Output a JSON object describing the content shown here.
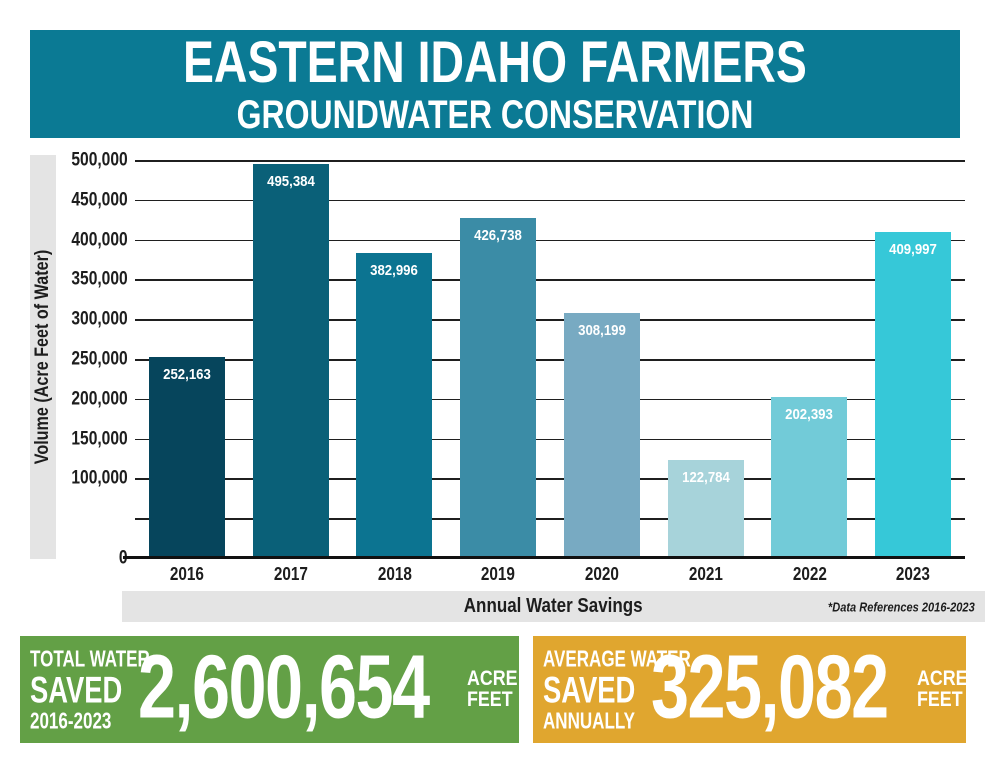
{
  "header": {
    "title": "EASTERN IDAHO FARMERS",
    "subtitle": "GROUNDWATER CONSERVATION",
    "bg": "#0b7a94"
  },
  "chart_data": {
    "type": "bar",
    "title": "",
    "categories": [
      "2016",
      "2017",
      "2018",
      "2019",
      "2020",
      "2021",
      "2022",
      "2023"
    ],
    "values": [
      252163,
      495384,
      382996,
      426738,
      308199,
      122784,
      202393,
      409997
    ],
    "value_labels": [
      "252,163",
      "495,384",
      "382,996",
      "426,738",
      "308,199",
      "122,784",
      "202,393",
      "409,997"
    ],
    "bar_colors": [
      "#06455c",
      "#0a6078",
      "#0c7491",
      "#3b8ca6",
      "#78aac2",
      "#a7d3da",
      "#72cbd8",
      "#36c8d8"
    ],
    "xlabel": "Annual Water Savings",
    "ylabel": "Volume (Acre Feet of Water)",
    "footnote": "*Data References 2016-2023",
    "ylim": [
      0,
      500000
    ],
    "gridline_step": 50000,
    "grid": true,
    "legend": false,
    "ytick_labels": [
      {
        "value": 500000,
        "label": "500,000"
      },
      {
        "value": 450000,
        "label": "450,000"
      },
      {
        "value": 400000,
        "label": "400,000"
      },
      {
        "value": 350000,
        "label": "350,000"
      },
      {
        "value": 300000,
        "label": "300,000"
      },
      {
        "value": 250000,
        "label": "250,000"
      },
      {
        "value": 200000,
        "label": "200,000"
      },
      {
        "value": 150000,
        "label": "150,000"
      },
      {
        "value": 100000,
        "label": "100,000"
      },
      {
        "value": 0,
        "label": "0"
      }
    ]
  },
  "stats": {
    "total": {
      "label_line1": "TOTAL WATER",
      "label_line2": "SAVED",
      "label_line3": "2016-2023",
      "value": "2,600,654",
      "unit_line1": "ACRE",
      "unit_line2": "FEET",
      "bg": "#63a046"
    },
    "average": {
      "label_line1": "AVERAGE WATER",
      "label_line2": "SAVED",
      "label_line3": "ANNUALLY",
      "value": "325,082",
      "unit_line1": "ACRE",
      "unit_line2": "FEET",
      "bg": "#e0a62f"
    }
  }
}
